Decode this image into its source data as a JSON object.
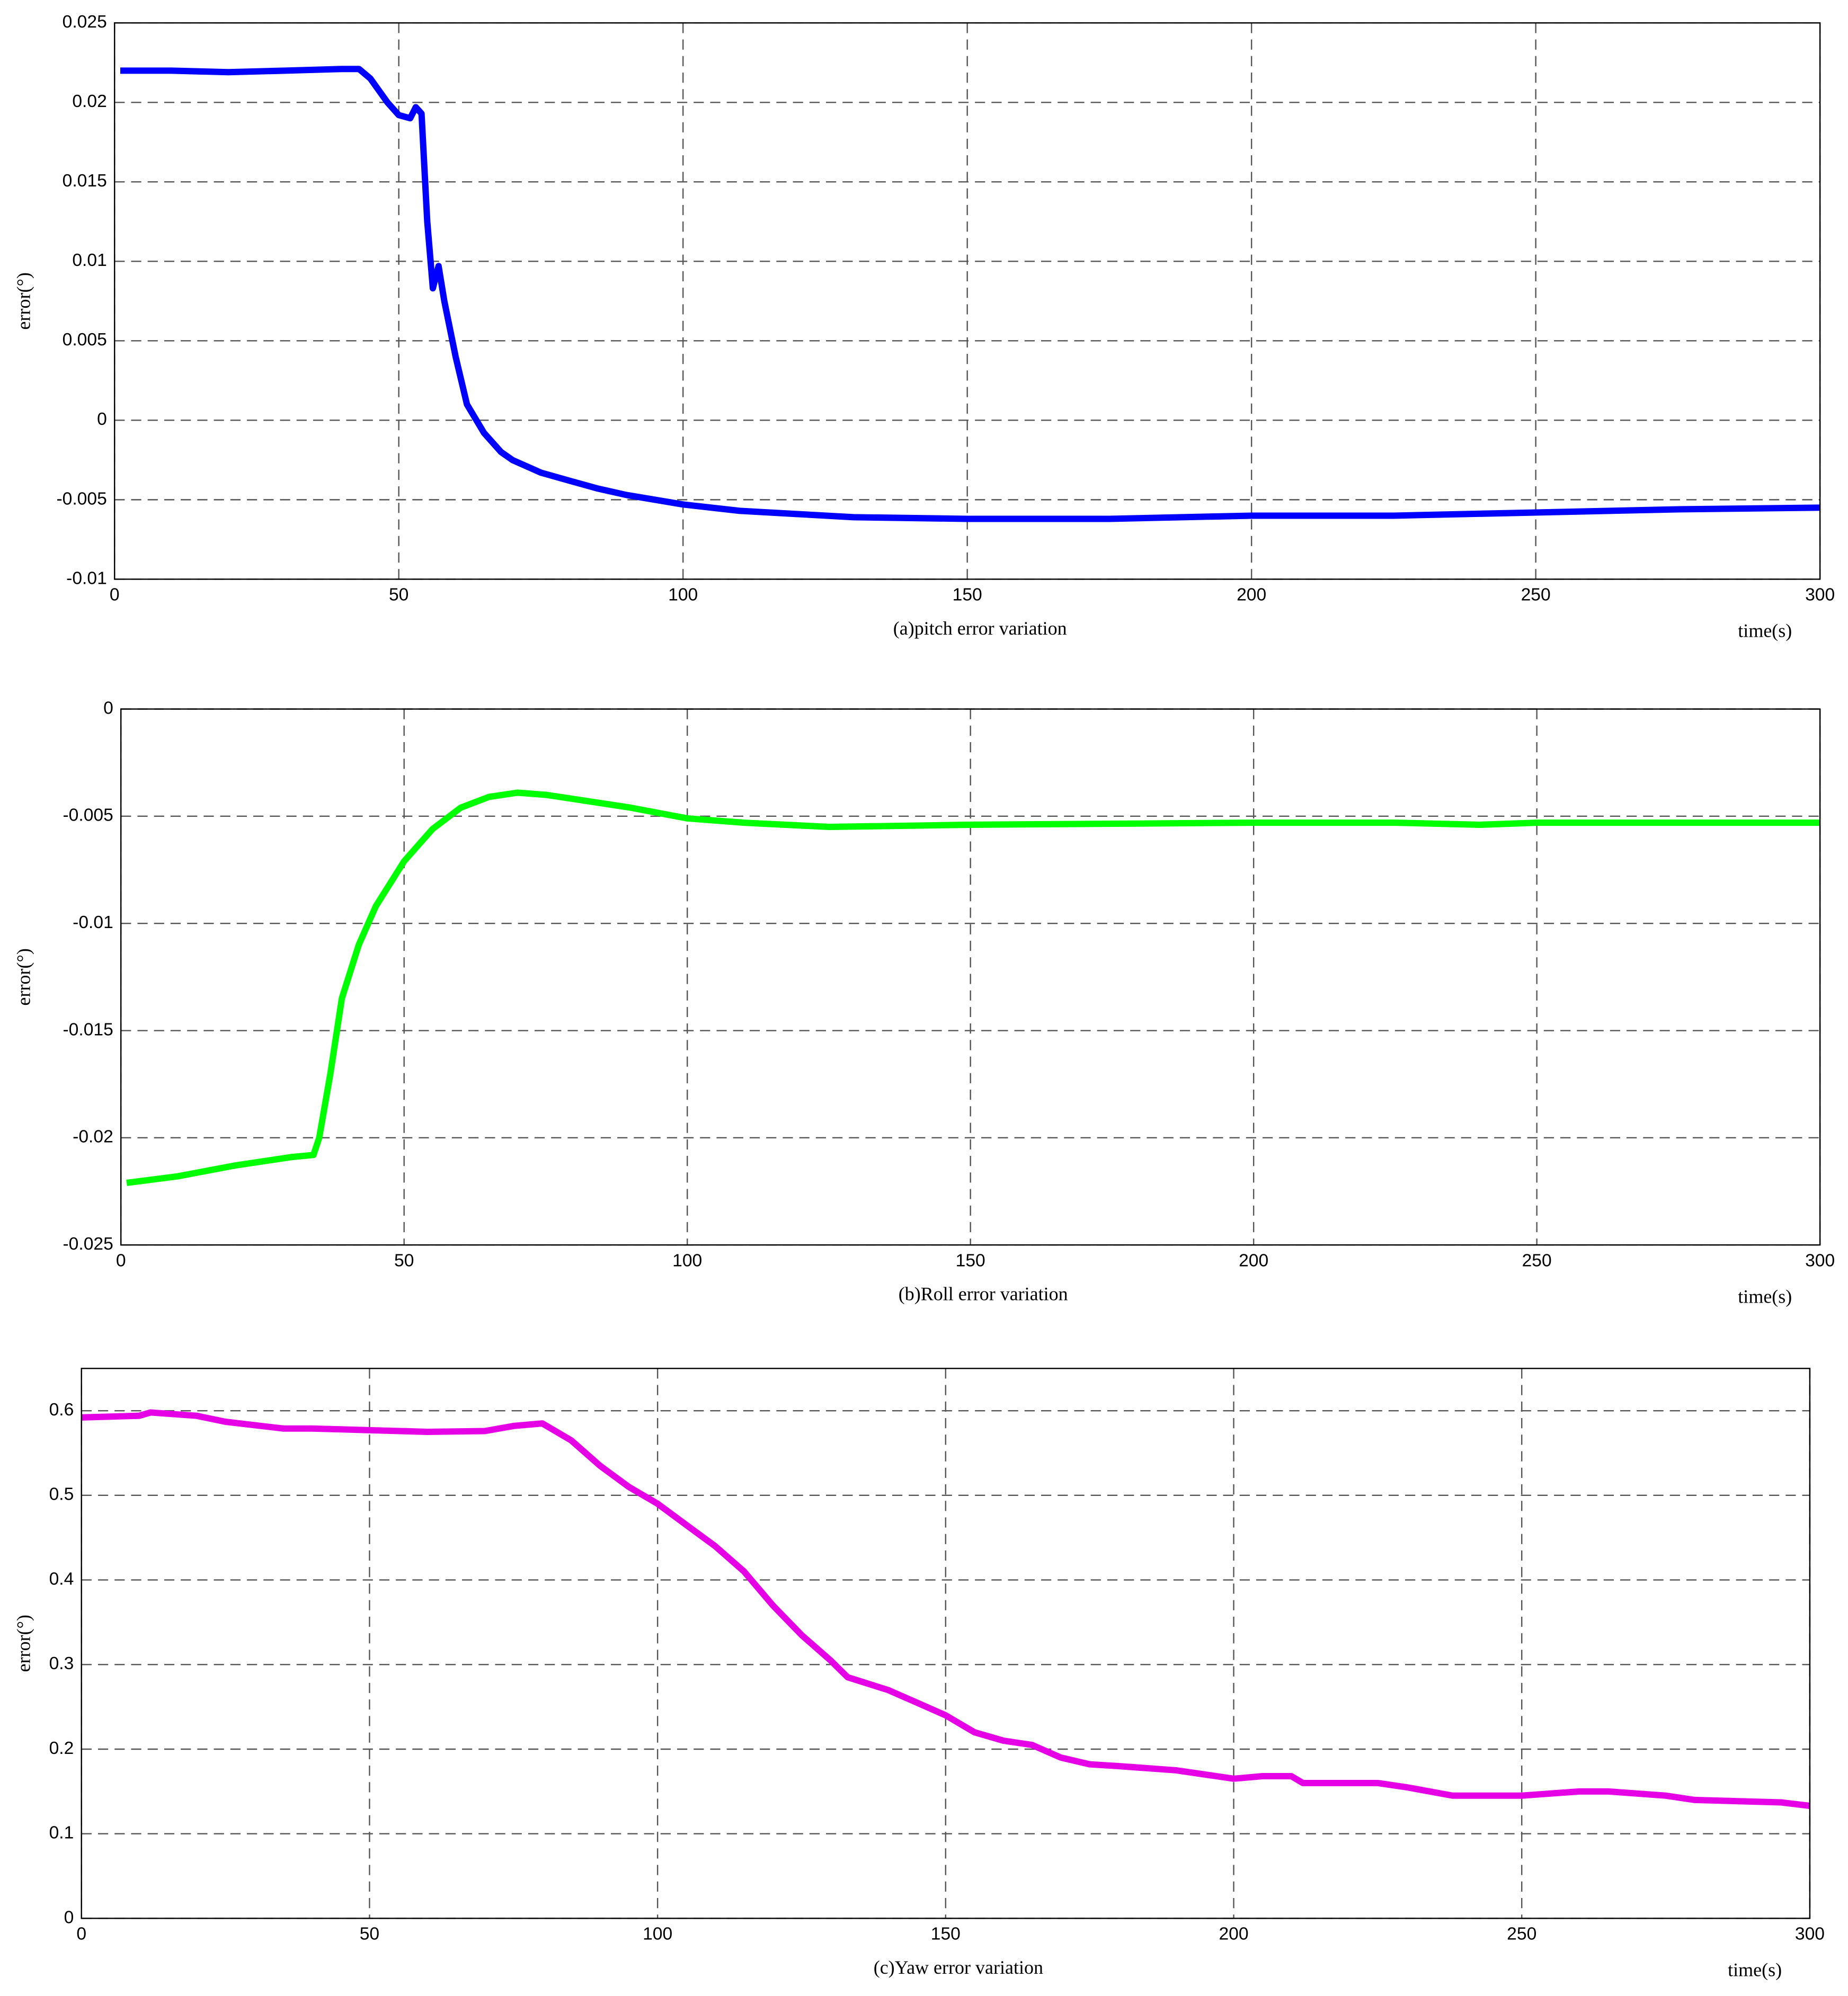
{
  "chart_data": [
    {
      "type": "line",
      "title": "(a)pitch error variation",
      "xlabel": "time(s)",
      "ylabel": "error(°)",
      "xlim": [
        0,
        300
      ],
      "ylim": [
        -0.01,
        0.025
      ],
      "xticks": [
        0,
        50,
        100,
        150,
        200,
        250,
        300
      ],
      "yticks": [
        -0.01,
        -0.005,
        0,
        0.005,
        0.01,
        0.015,
        0.02,
        0.025
      ],
      "grid": true,
      "x": [
        1,
        10,
        20,
        30,
        40,
        43,
        45,
        48,
        50,
        52,
        53,
        54,
        55,
        56,
        57,
        58,
        60,
        62,
        65,
        68,
        70,
        75,
        80,
        85,
        90,
        100,
        110,
        120,
        130,
        150,
        175,
        200,
        225,
        250,
        275,
        300
      ],
      "series": [
        {
          "color": "#0000ff",
          "values": [
            0.022,
            0.022,
            0.0219,
            0.022,
            0.0221,
            0.0221,
            0.0215,
            0.02,
            0.0192,
            0.019,
            0.0197,
            0.0193,
            0.0125,
            0.0083,
            0.0097,
            0.0075,
            0.004,
            0.001,
            -0.0008,
            -0.002,
            -0.0025,
            -0.0033,
            -0.0038,
            -0.0043,
            -0.0047,
            -0.0053,
            -0.0057,
            -0.0059,
            -0.0061,
            -0.0062,
            -0.0062,
            -0.006,
            -0.006,
            -0.0058,
            -0.0056,
            -0.0055
          ]
        }
      ]
    },
    {
      "type": "line",
      "title": "(b)Roll error variation",
      "xlabel": "time(s)",
      "ylabel": "error(°)",
      "xlim": [
        0,
        300
      ],
      "ylim": [
        -0.025,
        0
      ],
      "xticks": [
        0,
        50,
        100,
        150,
        200,
        250,
        300
      ],
      "yticks": [
        -0.025,
        -0.02,
        -0.015,
        -0.01,
        -0.005,
        0
      ],
      "grid": true,
      "x": [
        1,
        10,
        20,
        30,
        34,
        35,
        37,
        39,
        42,
        45,
        50,
        55,
        60,
        65,
        70,
        75,
        80,
        90,
        100,
        110,
        125,
        150,
        200,
        225,
        240,
        250,
        300
      ],
      "series": [
        {
          "color": "#00ff00",
          "values": [
            -0.0221,
            -0.0218,
            -0.0213,
            -0.0209,
            -0.0208,
            -0.02,
            -0.017,
            -0.0135,
            -0.011,
            -0.0092,
            -0.0071,
            -0.0056,
            -0.0046,
            -0.0041,
            -0.0039,
            -0.004,
            -0.0042,
            -0.0046,
            -0.0051,
            -0.0053,
            -0.0055,
            -0.0054,
            -0.0053,
            -0.0053,
            -0.0054,
            -0.0053,
            -0.0053
          ]
        }
      ]
    },
    {
      "type": "line",
      "title": "(c)Yaw error variation",
      "xlabel": "time(s)",
      "ylabel": "error(°)",
      "xlim": [
        0,
        300
      ],
      "ylim": [
        0,
        0.65
      ],
      "xticks": [
        0,
        50,
        100,
        150,
        200,
        250,
        300
      ],
      "yticks": [
        0,
        0.1,
        0.2,
        0.3,
        0.4,
        0.5,
        0.6
      ],
      "grid": true,
      "x": [
        0,
        10,
        12,
        20,
        25,
        35,
        40,
        50,
        60,
        70,
        75,
        80,
        85,
        90,
        95,
        100,
        105,
        110,
        115,
        120,
        125,
        130,
        133,
        140,
        145,
        150,
        155,
        160,
        165,
        170,
        175,
        180,
        190,
        200,
        205,
        210,
        212,
        225,
        230,
        238,
        250,
        260,
        265,
        275,
        280,
        295,
        300
      ],
      "series": [
        {
          "color": "#e600e6",
          "values": [
            0.592,
            0.594,
            0.598,
            0.594,
            0.587,
            0.579,
            0.579,
            0.577,
            0.575,
            0.576,
            0.582,
            0.585,
            0.565,
            0.535,
            0.51,
            0.49,
            0.465,
            0.44,
            0.41,
            0.37,
            0.335,
            0.305,
            0.285,
            0.27,
            0.255,
            0.24,
            0.22,
            0.21,
            0.205,
            0.19,
            0.182,
            0.18,
            0.175,
            0.165,
            0.168,
            0.168,
            0.16,
            0.16,
            0.155,
            0.145,
            0.145,
            0.15,
            0.15,
            0.145,
            0.14,
            0.137,
            0.133
          ]
        }
      ]
    }
  ]
}
